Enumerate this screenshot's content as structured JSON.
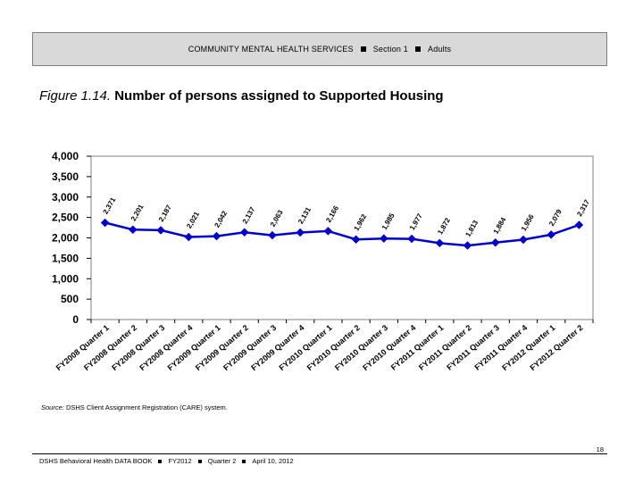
{
  "header": {
    "title": "COMMUNITY MENTAL HEALTH SERVICES",
    "section": "Section 1",
    "population": "Adults"
  },
  "figure": {
    "label": "Figure 1.14.",
    "title": "Number of persons assigned to Supported Housing"
  },
  "chart_data": {
    "type": "line",
    "categories": [
      "FY2008 Quarter 1",
      "FY2008 Quarter 2",
      "FY2008 Quarter 3",
      "FY2008 Quarter 4",
      "FY2009 Quarter 1",
      "FY2009 Quarter 2",
      "FY2009 Quarter 3",
      "FY2009 Quarter 4",
      "FY2010 Quarter 1",
      "FY2010 Quarter 2",
      "FY2010 Quarter 3",
      "FY2010 Quarter 4",
      "FY2011 Quarter 1",
      "FY2011 Quarter 2",
      "FY2011 Quarter 3",
      "FY2011 Quarter 4",
      "FY2012 Quarter 1",
      "FY2012 Quarter 2"
    ],
    "values": [
      2371,
      2201,
      2187,
      2021,
      2042,
      2137,
      2063,
      2131,
      2166,
      1962,
      1985,
      1977,
      1872,
      1813,
      1884,
      1956,
      2079,
      2317
    ],
    "data_labels": [
      "2,371",
      "2,201",
      "2,187",
      "2,021",
      "2,042",
      "2,137",
      "2,063",
      "2,131",
      "2,166",
      "1,962",
      "1,985",
      "1,977",
      "1,872",
      "1,813",
      "1,884",
      "1,956",
      "2,079",
      "2,317"
    ],
    "ylim": [
      0,
      4000
    ],
    "yticks": [
      0,
      500,
      1000,
      1500,
      2000,
      2500,
      3000,
      3500,
      4000
    ],
    "ytick_labels": [
      "0",
      "500",
      "1,000",
      "1,500",
      "2,000",
      "2,500",
      "3,000",
      "3,500",
      "4,000"
    ],
    "line_color": "#0000cc",
    "marker": "diamond",
    "grid": false,
    "legend": "none"
  },
  "source": {
    "label": "Source:",
    "text": "DSHS Client Assignment Registration (CARE) system."
  },
  "page_number": "18",
  "footer": {
    "book": "DSHS Behavioral Health DATA BOOK",
    "fiscal_year": "FY2012",
    "quarter": "Quarter 2",
    "date": "April 10, 2012"
  }
}
